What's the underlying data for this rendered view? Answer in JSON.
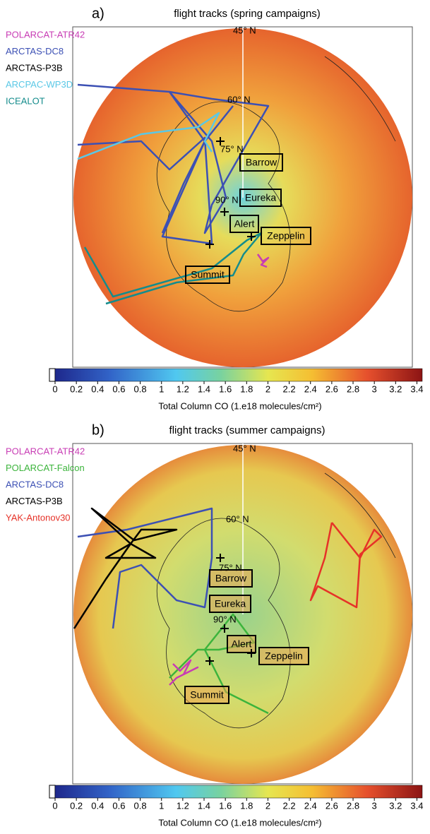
{
  "panels": [
    {
      "label": "a)",
      "title": "flight tracks (spring campaigns)",
      "legend": [
        {
          "name": "POLARCAT-ATR42",
          "color": "#c83cb4"
        },
        {
          "name": "ARCTAS-DC8",
          "color": "#3c50b4"
        },
        {
          "name": "ARCTAS-P3B",
          "color": "#000000"
        },
        {
          "name": "ARCPAC-WP3D",
          "color": "#5ac8e6"
        },
        {
          "name": "ICEALOT",
          "color": "#148c8c"
        }
      ],
      "latitudes": [
        "45° N",
        "60° N",
        "75° N",
        "90° N"
      ],
      "stations": [
        "Barrow",
        "Eureka",
        "Alert",
        "Zeppelin",
        "Summit"
      ],
      "colorbar": {
        "lim": [
          0,
          3.45
        ],
        "ticks": [
          0,
          0.2,
          0.4,
          0.6,
          0.8,
          1,
          1.2,
          1.4,
          1.6,
          1.8,
          2,
          2.2,
          2.4,
          2.6,
          2.8,
          3,
          3.2,
          3.4
        ],
        "label": "Total Column CO (1.e18 molecules/cm²)"
      }
    },
    {
      "label": "b)",
      "title": "flight tracks (summer campaigns)",
      "legend": [
        {
          "name": "POLARCAT-ATR42",
          "color": "#c83cb4"
        },
        {
          "name": "POLARCAT-Falcon",
          "color": "#3cb43c"
        },
        {
          "name": "ARCTAS-DC8",
          "color": "#3c50b4"
        },
        {
          "name": "ARCTAS-P3B",
          "color": "#000000"
        },
        {
          "name": "YAK-Antonov30",
          "color": "#e63228"
        }
      ],
      "latitudes": [
        "45° N",
        "60° N",
        "75° N",
        "90° N"
      ],
      "stations": [
        "Barrow",
        "Eureka",
        "Alert",
        "Zeppelin",
        "Summit"
      ],
      "colorbar": {
        "lim": [
          0,
          3.45
        ],
        "ticks": [
          0,
          0.2,
          0.4,
          0.6,
          0.8,
          1,
          1.2,
          1.4,
          1.6,
          1.8,
          2,
          2.2,
          2.4,
          2.6,
          2.8,
          3,
          3.2,
          3.4
        ],
        "label": "Total Column CO (1.e18 molecules/cm²)"
      }
    }
  ]
}
